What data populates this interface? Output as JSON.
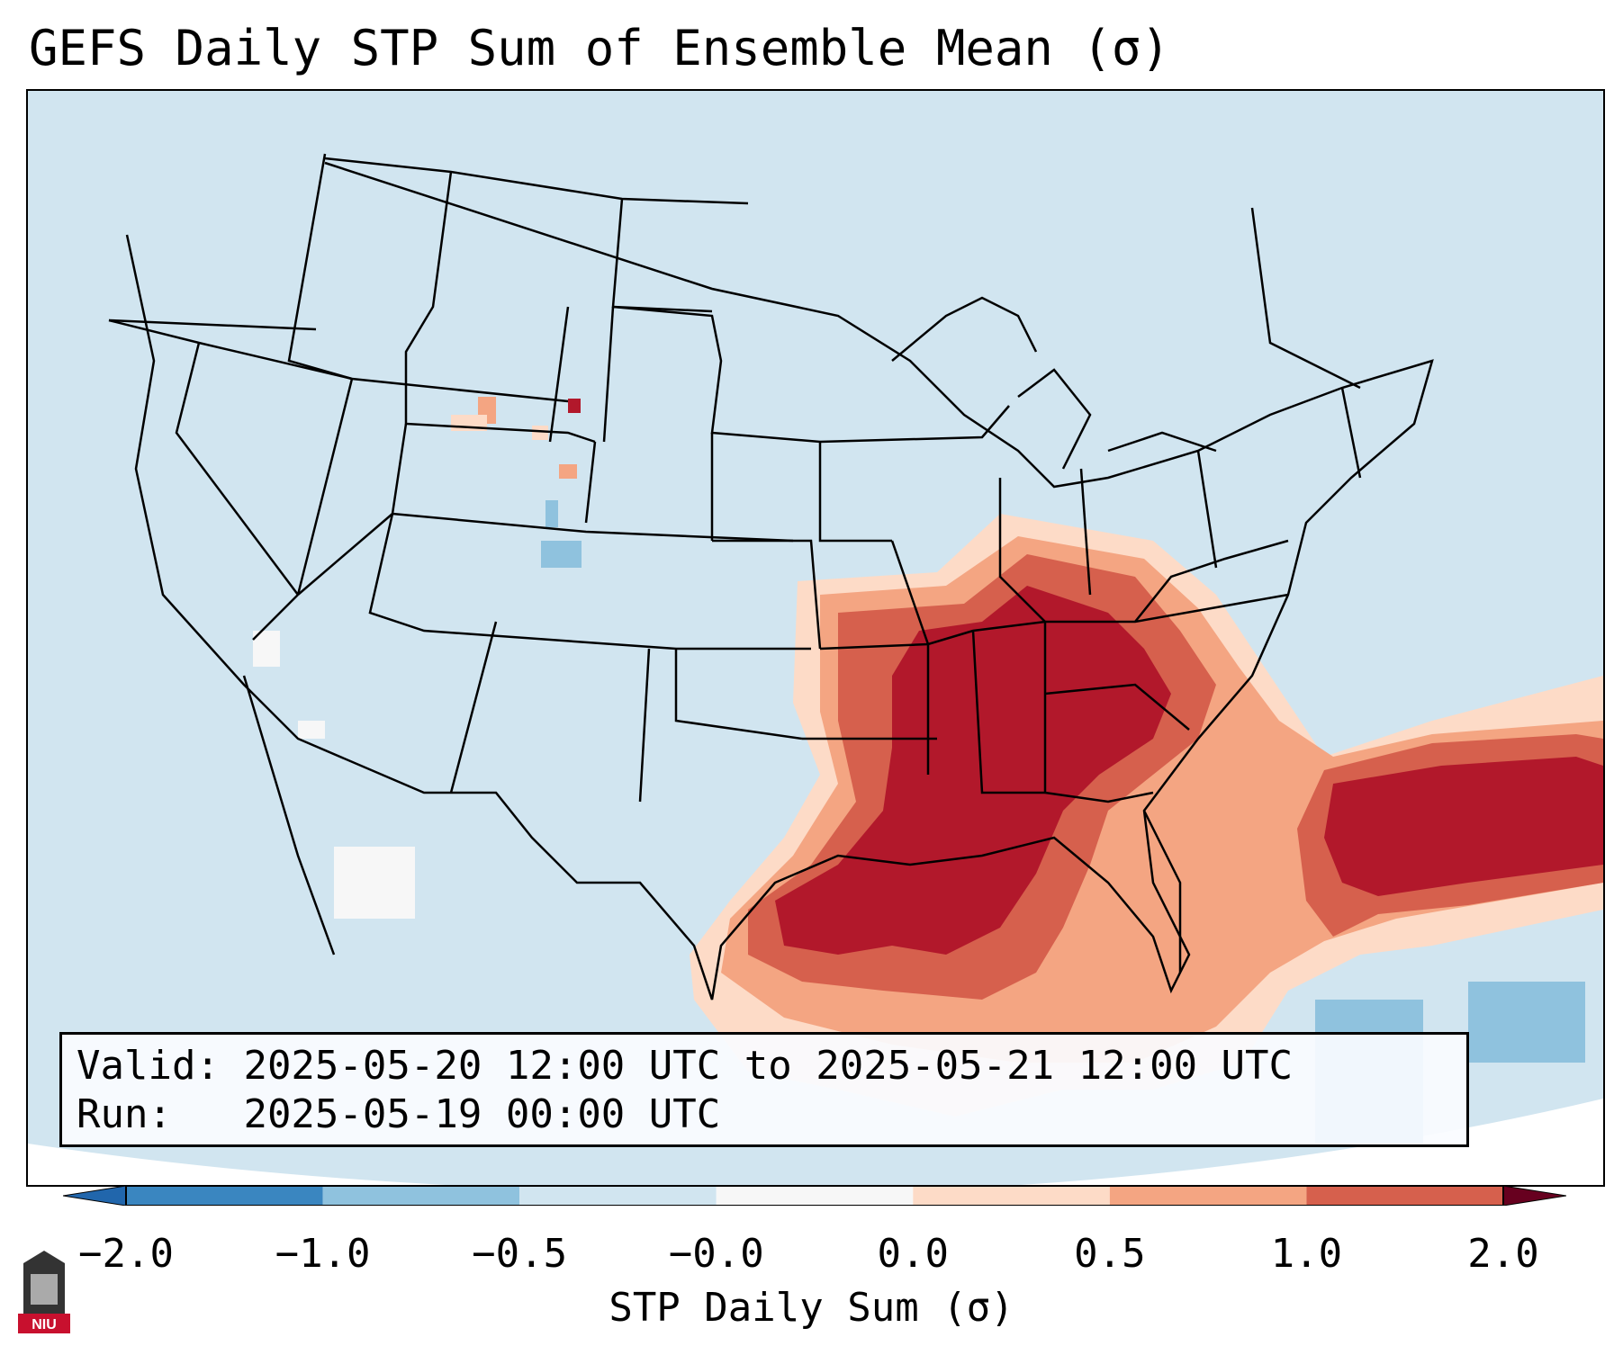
{
  "title": "GEFS Daily STP Sum of Ensemble Mean (σ)",
  "info": {
    "valid_label": "Valid:",
    "valid_value": "2025-05-20 12:00 UTC to 2025-05-21 12:00 UTC",
    "run_label": "Run:",
    "run_value": "2025-05-19 00:00 UTC"
  },
  "colorbar": {
    "label": "STP Daily Sum (σ)",
    "ticks": [
      "−2.0",
      "−1.0",
      "−0.5",
      "−0.0",
      "0.0",
      "0.5",
      "1.0",
      "2.0"
    ],
    "bin_colors": [
      "#3a86c0",
      "#8fc2de",
      "#d1e5f0",
      "#f7f7f7",
      "#fddbc7",
      "#f4a582",
      "#d6604d",
      "#b2182b"
    ],
    "extend": "both"
  },
  "map": {
    "background_color": "#d1e5f0",
    "high_anomaly_color": "#b2182b",
    "region": "CONUS"
  },
  "logo": {
    "text": "NIU",
    "icon": "university-tower-icon"
  }
}
